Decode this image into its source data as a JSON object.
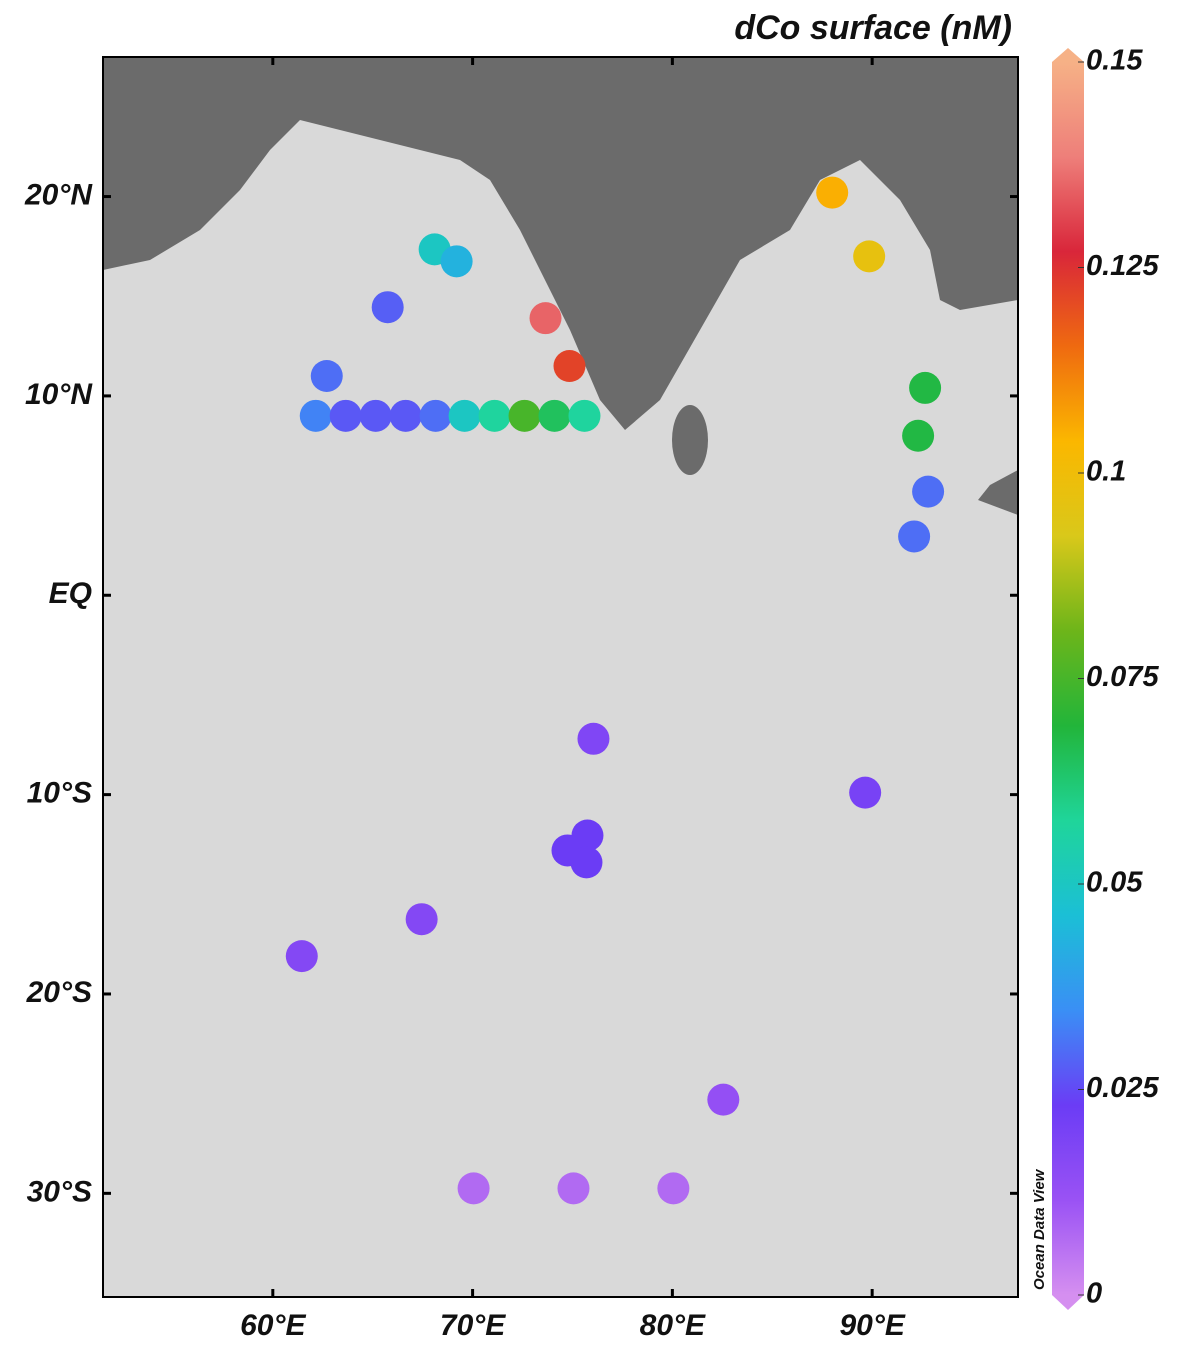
{
  "chart_data": {
    "type": "scatter",
    "title": "dCo surface (nM)",
    "watermark": "Ocean Data View",
    "x": [
      88.0,
      89.85,
      68.1,
      69.2,
      65.75,
      73.65,
      74.85,
      62.7,
      62.15,
      63.65,
      65.15,
      66.65,
      68.15,
      69.6,
      71.1,
      72.6,
      74.1,
      75.6,
      92.65,
      92.3,
      92.8,
      92.1,
      76.05,
      89.65,
      75.75,
      74.75,
      75.7,
      67.45,
      61.45,
      82.55,
      70.05,
      75.05,
      80.05
    ],
    "y": [
      20.2,
      17.0,
      17.35,
      16.75,
      14.45,
      13.9,
      11.5,
      11.0,
      9.0,
      9.0,
      9.0,
      9.0,
      9.0,
      9.0,
      9.0,
      9.0,
      9.0,
      9.0,
      10.4,
      8.0,
      5.2,
      2.95,
      -7.2,
      -9.9,
      -12.05,
      -12.8,
      -13.4,
      -16.25,
      -18.1,
      -25.3,
      -29.75,
      -29.75,
      -29.75
    ],
    "values": [
      0.105,
      0.097,
      0.05,
      0.043,
      0.028,
      0.135,
      0.122,
      0.03,
      0.033,
      0.027,
      0.027,
      0.027,
      0.03,
      0.05,
      0.057,
      0.075,
      0.065,
      0.057,
      0.068,
      0.068,
      0.03,
      0.03,
      0.018,
      0.02,
      0.023,
      0.023,
      0.023,
      0.017,
      0.017,
      0.013,
      0.007,
      0.007,
      0.007
    ],
    "xlim": [
      51.5,
      97.3
    ],
    "ylim": [
      -35.2,
      27
    ],
    "xticks": [
      {
        "value": 60,
        "label": "60°E"
      },
      {
        "value": 70,
        "label": "70°E"
      },
      {
        "value": 80,
        "label": "80°E"
      },
      {
        "value": 90,
        "label": "90°E"
      }
    ],
    "yticks": [
      {
        "value": 20,
        "label": "20°N"
      },
      {
        "value": 10,
        "label": "10°N"
      },
      {
        "value": 0,
        "label": "EQ"
      },
      {
        "value": -10,
        "label": "10°S"
      },
      {
        "value": -20,
        "label": "20°S"
      },
      {
        "value": -30,
        "label": "30°S"
      }
    ],
    "clim": [
      0,
      0.15
    ],
    "cticks": [
      0,
      0.025,
      0.05,
      0.075,
      0.1,
      0.125,
      0.15
    ],
    "colorscale": [
      "#d58ff0",
      "#9a52f4",
      "#6b3cf5",
      "#3a8ff5",
      "#1bbfd6",
      "#1fd59a",
      "#22b53a",
      "#6db51a",
      "#d9c81a",
      "#fbb700",
      "#ef6a10",
      "#d9263a",
      "#ee7f7a",
      "#f6b186"
    ]
  }
}
